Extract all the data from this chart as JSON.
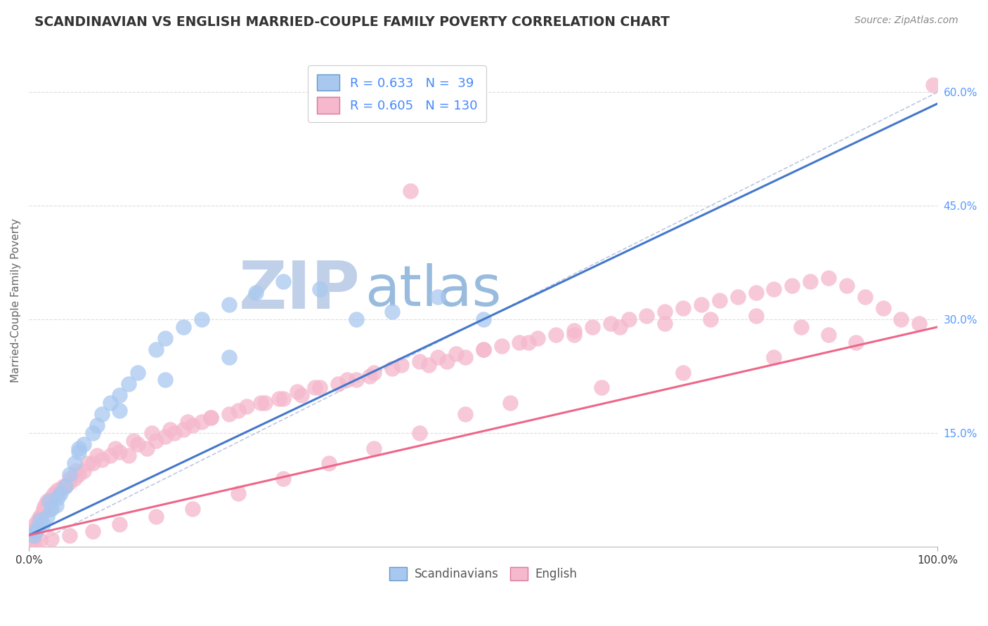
{
  "title": "SCANDINAVIAN VS ENGLISH MARRIED-COUPLE FAMILY POVERTY CORRELATION CHART",
  "source": "Source: ZipAtlas.com",
  "ylabel": "Married-Couple Family Poverty",
  "xmin": 0.0,
  "xmax": 100.0,
  "ymin": 0.0,
  "ymax": 65.0,
  "legend_R1": "R = 0.633",
  "legend_N1": "N =  39",
  "legend_R2": "R = 0.605",
  "legend_N2": "N = 130",
  "color_scand_face": "#A8C8F0",
  "color_scand_edge": "#6699CC",
  "color_english_face": "#F5B8CC",
  "color_english_edge": "#DD7799",
  "color_scand_line": "#4477CC",
  "color_english_line": "#EE6688",
  "color_diag": "#AABBDD",
  "watermark_zip_color": "#C0D0E8",
  "watermark_atlas_color": "#99BBDD",
  "bg_color": "#FFFFFF",
  "grid_color": "#DDDDDD",
  "ytick_color": "#5599FF",
  "title_color": "#333333",
  "source_color": "#888888",
  "ylabel_color": "#666666",
  "xtick_color": "#333333",
  "legend_text_color": "#4488FF",
  "bottom_legend_color": "#555555",
  "scand_x": [
    1.0,
    1.5,
    2.0,
    2.5,
    3.0,
    3.5,
    4.0,
    4.5,
    5.0,
    5.5,
    6.0,
    7.0,
    8.0,
    9.0,
    10.0,
    11.0,
    12.0,
    14.0,
    15.0,
    17.0,
    19.0,
    22.0,
    25.0,
    28.0,
    32.0,
    36.0,
    40.0,
    45.0,
    50.0,
    0.5,
    0.8,
    1.2,
    2.2,
    3.2,
    5.5,
    7.5,
    10.0,
    15.0,
    22.0
  ],
  "scand_y": [
    2.5,
    3.0,
    4.0,
    5.0,
    5.5,
    7.0,
    8.0,
    9.5,
    11.0,
    12.5,
    13.5,
    15.0,
    17.5,
    19.0,
    20.0,
    21.5,
    23.0,
    26.0,
    27.5,
    29.0,
    30.0,
    32.0,
    33.5,
    35.0,
    34.0,
    30.0,
    31.0,
    33.0,
    30.0,
    1.5,
    2.0,
    3.5,
    6.0,
    6.5,
    13.0,
    16.0,
    18.0,
    22.0,
    25.0
  ],
  "english_x": [
    0.3,
    0.5,
    0.7,
    0.8,
    1.0,
    1.2,
    1.5,
    1.8,
    2.0,
    2.3,
    2.5,
    3.0,
    3.5,
    4.0,
    4.5,
    5.0,
    5.5,
    6.0,
    7.0,
    8.0,
    9.0,
    10.0,
    11.0,
    12.0,
    13.0,
    14.0,
    15.0,
    16.0,
    17.0,
    18.0,
    19.0,
    20.0,
    22.0,
    24.0,
    26.0,
    28.0,
    30.0,
    32.0,
    34.0,
    36.0,
    38.0,
    40.0,
    42.0,
    44.0,
    46.0,
    48.0,
    50.0,
    52.0,
    54.0,
    56.0,
    58.0,
    60.0,
    62.0,
    64.0,
    66.0,
    68.0,
    70.0,
    72.0,
    74.0,
    76.0,
    78.0,
    80.0,
    82.0,
    84.0,
    86.0,
    88.0,
    90.0,
    92.0,
    94.0,
    96.0,
    98.0,
    99.5,
    0.4,
    0.6,
    0.9,
    1.3,
    1.6,
    2.2,
    2.8,
    3.2,
    3.8,
    4.5,
    5.2,
    6.5,
    7.5,
    9.5,
    11.5,
    13.5,
    15.5,
    17.5,
    20.0,
    23.0,
    25.5,
    27.5,
    29.5,
    31.5,
    35.0,
    37.5,
    41.0,
    43.0,
    45.0,
    47.0,
    50.0,
    55.0,
    60.0,
    65.0,
    70.0,
    75.0,
    80.0,
    85.0,
    88.0,
    91.0,
    82.0,
    72.0,
    63.0,
    53.0,
    48.0,
    43.0,
    38.0,
    33.0,
    28.0,
    23.0,
    18.0,
    14.0,
    10.0,
    7.0,
    4.5,
    2.5,
    1.2,
    0.6
  ],
  "english_y": [
    2.0,
    1.5,
    3.0,
    2.5,
    3.5,
    4.0,
    4.5,
    5.5,
    6.0,
    5.0,
    6.5,
    7.0,
    7.5,
    8.0,
    8.5,
    9.0,
    9.5,
    10.0,
    11.0,
    11.5,
    12.0,
    12.5,
    12.0,
    13.5,
    13.0,
    14.0,
    14.5,
    15.0,
    15.5,
    16.0,
    16.5,
    17.0,
    17.5,
    18.5,
    19.0,
    19.5,
    20.0,
    21.0,
    21.5,
    22.0,
    23.0,
    23.5,
    47.0,
    24.0,
    24.5,
    25.0,
    26.0,
    26.5,
    27.0,
    27.5,
    28.0,
    28.5,
    29.0,
    29.5,
    30.0,
    30.5,
    31.0,
    31.5,
    32.0,
    32.5,
    33.0,
    33.5,
    34.0,
    34.5,
    35.0,
    35.5,
    34.5,
    33.0,
    31.5,
    30.0,
    29.5,
    61.0,
    1.0,
    2.0,
    3.0,
    4.0,
    5.0,
    6.0,
    7.0,
    7.5,
    8.0,
    9.0,
    10.0,
    11.0,
    12.0,
    13.0,
    14.0,
    15.0,
    15.5,
    16.5,
    17.0,
    18.0,
    19.0,
    19.5,
    20.5,
    21.0,
    22.0,
    22.5,
    24.0,
    24.5,
    25.0,
    25.5,
    26.0,
    27.0,
    28.0,
    29.0,
    29.5,
    30.0,
    30.5,
    29.0,
    28.0,
    27.0,
    25.0,
    23.0,
    21.0,
    19.0,
    17.5,
    15.0,
    13.0,
    11.0,
    9.0,
    7.0,
    5.0,
    4.0,
    3.0,
    2.0,
    1.5,
    1.0,
    0.8,
    0.5
  ]
}
